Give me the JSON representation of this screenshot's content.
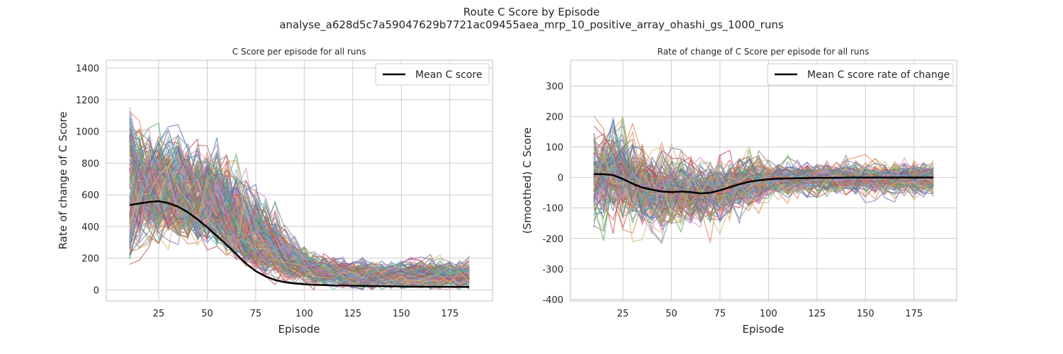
{
  "figure": {
    "title": "Route C Score by Episode",
    "subtitle": "analyse_a628d5c7a59047629b7721ac09455aea_mrp_10_positive_array_ohashi_gs_1000_runs"
  },
  "chart_data": [
    {
      "type": "line",
      "title": "C Score per episode for all runs",
      "xlabel": "Episode",
      "ylabel": "Rate of change of C Score",
      "xlim": [
        -2,
        197
      ],
      "ylim": [
        -70,
        1450
      ],
      "xticks": [
        25,
        50,
        75,
        100,
        125,
        150,
        175
      ],
      "yticks": [
        0,
        200,
        400,
        600,
        800,
        1000,
        1200,
        1400
      ],
      "grid": true,
      "legend_position": "top-right",
      "note_runs": "many individual runs plotted as thin colored lines",
      "series": [
        {
          "name": "Mean C score",
          "color": "#000000",
          "x": [
            10,
            15,
            20,
            25,
            30,
            35,
            40,
            45,
            50,
            55,
            60,
            65,
            70,
            75,
            80,
            85,
            90,
            95,
            100,
            105,
            110,
            115,
            120,
            125,
            130,
            135,
            140,
            145,
            150,
            155,
            160,
            165,
            170,
            175,
            180,
            185
          ],
          "y": [
            535,
            545,
            555,
            560,
            548,
            525,
            490,
            445,
            395,
            340,
            285,
            225,
            165,
            118,
            85,
            62,
            48,
            40,
            35,
            32,
            30,
            28,
            27,
            26,
            25,
            24,
            23,
            22,
            21,
            20,
            20,
            19,
            19,
            19,
            18,
            18
          ]
        }
      ]
    },
    {
      "type": "line",
      "title": "Rate of change of C Score per episode for all runs",
      "xlabel": "Episode",
      "ylabel": "(Smoothed) C Score",
      "xlim": [
        -2,
        197
      ],
      "ylim": [
        -405,
        385
      ],
      "xticks": [
        25,
        50,
        75,
        100,
        125,
        150,
        175
      ],
      "yticks": [
        -400,
        -300,
        -200,
        -100,
        0,
        100,
        200,
        300
      ],
      "grid": true,
      "legend_position": "top-right",
      "note_runs": "many individual runs plotted as thin colored lines",
      "series": [
        {
          "name": "Mean C score rate of change",
          "color": "#000000",
          "x": [
            10,
            15,
            20,
            25,
            30,
            35,
            40,
            45,
            50,
            55,
            60,
            65,
            70,
            75,
            80,
            85,
            90,
            95,
            100,
            105,
            110,
            115,
            120,
            125,
            130,
            135,
            140,
            145,
            150,
            155,
            160,
            165,
            170,
            175,
            180,
            185
          ],
          "y": [
            11,
            11,
            8,
            -5,
            -20,
            -33,
            -40,
            -46,
            -48,
            -46,
            -48,
            -52,
            -50,
            -42,
            -32,
            -22,
            -14,
            -9,
            -6,
            -4,
            -3,
            -2,
            -2,
            -1,
            -1,
            -1,
            0,
            0,
            0,
            0,
            0,
            0,
            0,
            0,
            0,
            0
          ]
        }
      ]
    }
  ],
  "palette": [
    "#4c72b0",
    "#dd8452",
    "#55a868",
    "#c44e52",
    "#8172b3",
    "#937860",
    "#da8bc3",
    "#8c8c8c",
    "#ccb974",
    "#64b5cd"
  ]
}
